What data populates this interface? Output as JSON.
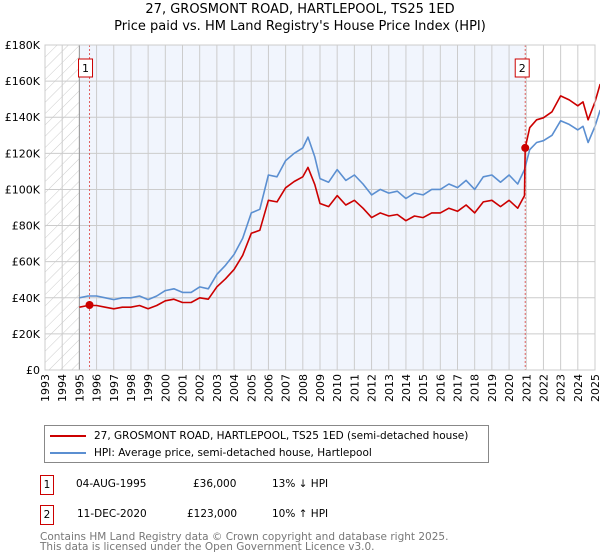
{
  "title": "27, GROSMONT ROAD, HARTLEPOOL, TS25 1ED",
  "subtitle": "Price paid vs. HM Land Registry's House Price Index (HPI)",
  "chart_data": {
    "type": "line",
    "title": "27, GROSMONT ROAD, HARTLEPOOL, TS25 1ED",
    "subtitle": "Price paid vs. HM Land Registry's House Price Index (HPI)",
    "xlabel": "",
    "ylabel": "",
    "xlim": [
      1993,
      2025
    ],
    "ylim": [
      0,
      180000
    ],
    "x_ticks": [
      "1993",
      "1994",
      "1995",
      "1996",
      "1997",
      "1998",
      "1999",
      "2000",
      "2001",
      "2002",
      "2003",
      "2004",
      "2005",
      "2006",
      "2007",
      "2008",
      "2009",
      "2010",
      "2011",
      "2012",
      "2013",
      "2014",
      "2015",
      "2016",
      "2017",
      "2018",
      "2019",
      "2020",
      "2021",
      "2022",
      "2023",
      "2024",
      "2025"
    ],
    "y_ticks": [
      "£0",
      "£20K",
      "£40K",
      "£60K",
      "£80K",
      "£100K",
      "£120K",
      "£140K",
      "£160K",
      "£180K"
    ],
    "grid": true,
    "legend_position": "below",
    "series": [
      {
        "name": "27, GROSMONT ROAD, HARTLEPOOL, TS25 1ED (semi-detached house)",
        "color": "#cc0000",
        "x": [
          1995.0,
          1995.5,
          1996.0,
          1996.5,
          1997.0,
          1997.5,
          1998.0,
          1998.5,
          1999.0,
          1999.5,
          2000.0,
          2000.5,
          2001.0,
          2001.5,
          2002.0,
          2002.5,
          2003.0,
          2003.5,
          2004.0,
          2004.5,
          2005.0,
          2005.5,
          2006.0,
          2006.5,
          2007.0,
          2007.5,
          2008.0,
          2008.3,
          2008.7,
          2009.0,
          2009.5,
          2010.0,
          2010.5,
          2011.0,
          2011.5,
          2012.0,
          2012.5,
          2013.0,
          2013.5,
          2014.0,
          2014.5,
          2015.0,
          2015.5,
          2016.0,
          2016.5,
          2017.0,
          2017.5,
          2018.0,
          2018.5,
          2019.0,
          2019.5,
          2020.0,
          2020.5,
          2020.9,
          2020.94,
          2021.2,
          2021.6,
          2022.0,
          2022.5,
          2023.0,
          2023.5,
          2024.0,
          2024.3,
          2024.6,
          2025.0,
          2025.3
        ],
        "values": [
          34800,
          35700,
          35700,
          34800,
          33900,
          34800,
          34800,
          35700,
          33900,
          35700,
          38300,
          39200,
          37400,
          37400,
          40000,
          39200,
          46100,
          50500,
          55700,
          63500,
          75700,
          77400,
          94000,
          93100,
          100900,
          104400,
          107000,
          112200,
          102700,
          92200,
          90500,
          96600,
          91400,
          94000,
          89600,
          84400,
          87000,
          85300,
          86100,
          82700,
          85300,
          84400,
          87000,
          87000,
          89600,
          87900,
          91400,
          87000,
          93100,
          94000,
          90500,
          94000,
          89600,
          96600,
          123000,
          134200,
          138600,
          139700,
          143000,
          151800,
          149600,
          146300,
          148500,
          138600,
          148500,
          158400
        ]
      },
      {
        "name": "HPI: Average price, semi-detached house, Hartlepool",
        "color": "#5b8fd1",
        "x": [
          1995.0,
          1995.5,
          1996.0,
          1996.5,
          1997.0,
          1997.5,
          1998.0,
          1998.5,
          1999.0,
          1999.5,
          2000.0,
          2000.5,
          2001.0,
          2001.5,
          2002.0,
          2002.5,
          2003.0,
          2003.5,
          2004.0,
          2004.5,
          2005.0,
          2005.5,
          2006.0,
          2006.5,
          2007.0,
          2007.5,
          2008.0,
          2008.3,
          2008.7,
          2009.0,
          2009.5,
          2010.0,
          2010.5,
          2011.0,
          2011.5,
          2012.0,
          2012.5,
          2013.0,
          2013.5,
          2014.0,
          2014.5,
          2015.0,
          2015.5,
          2016.0,
          2016.5,
          2017.0,
          2017.5,
          2018.0,
          2018.5,
          2019.0,
          2019.5,
          2020.0,
          2020.5,
          2020.9,
          2021.2,
          2021.6,
          2022.0,
          2022.5,
          2023.0,
          2023.5,
          2024.0,
          2024.3,
          2024.6,
          2025.0,
          2025.3
        ],
        "values": [
          40000,
          41000,
          41000,
          40000,
          39000,
          40000,
          40000,
          41000,
          39000,
          41000,
          44000,
          45000,
          43000,
          43000,
          46000,
          45000,
          53000,
          58000,
          64000,
          73000,
          87000,
          89000,
          108000,
          107000,
          116000,
          120000,
          123000,
          129000,
          118000,
          106000,
          104000,
          111000,
          105000,
          108000,
          103000,
          97000,
          100000,
          98000,
          99000,
          95000,
          98000,
          97000,
          100000,
          100000,
          103000,
          101000,
          105000,
          100000,
          107000,
          108000,
          104000,
          108000,
          103000,
          111000,
          122000,
          126000,
          127000,
          130000,
          138000,
          136000,
          133000,
          135000,
          126000,
          135000,
          144000
        ]
      }
    ],
    "annotations": [
      {
        "label": "1",
        "x": 1995.59,
        "y": 36000
      },
      {
        "label": "2",
        "x": 2020.94,
        "y": 123000
      }
    ],
    "hatched_before": 1995
  },
  "legend": {
    "property": "27, GROSMONT ROAD, HARTLEPOOL, TS25 1ED (semi-detached house)",
    "hpi": "HPI: Average price, semi-detached house, Hartlepool"
  },
  "sales": [
    {
      "num": "1",
      "date": "04-AUG-1995",
      "price": "£36,000",
      "hpi": "13% ↓ HPI"
    },
    {
      "num": "2",
      "date": "11-DEC-2020",
      "price": "£123,000",
      "hpi": "10% ↑ HPI"
    }
  ],
  "footer": {
    "line1": "Contains HM Land Registry data © Crown copyright and database right 2025.",
    "line2": "This data is licensed under the Open Government Licence v3.0."
  }
}
